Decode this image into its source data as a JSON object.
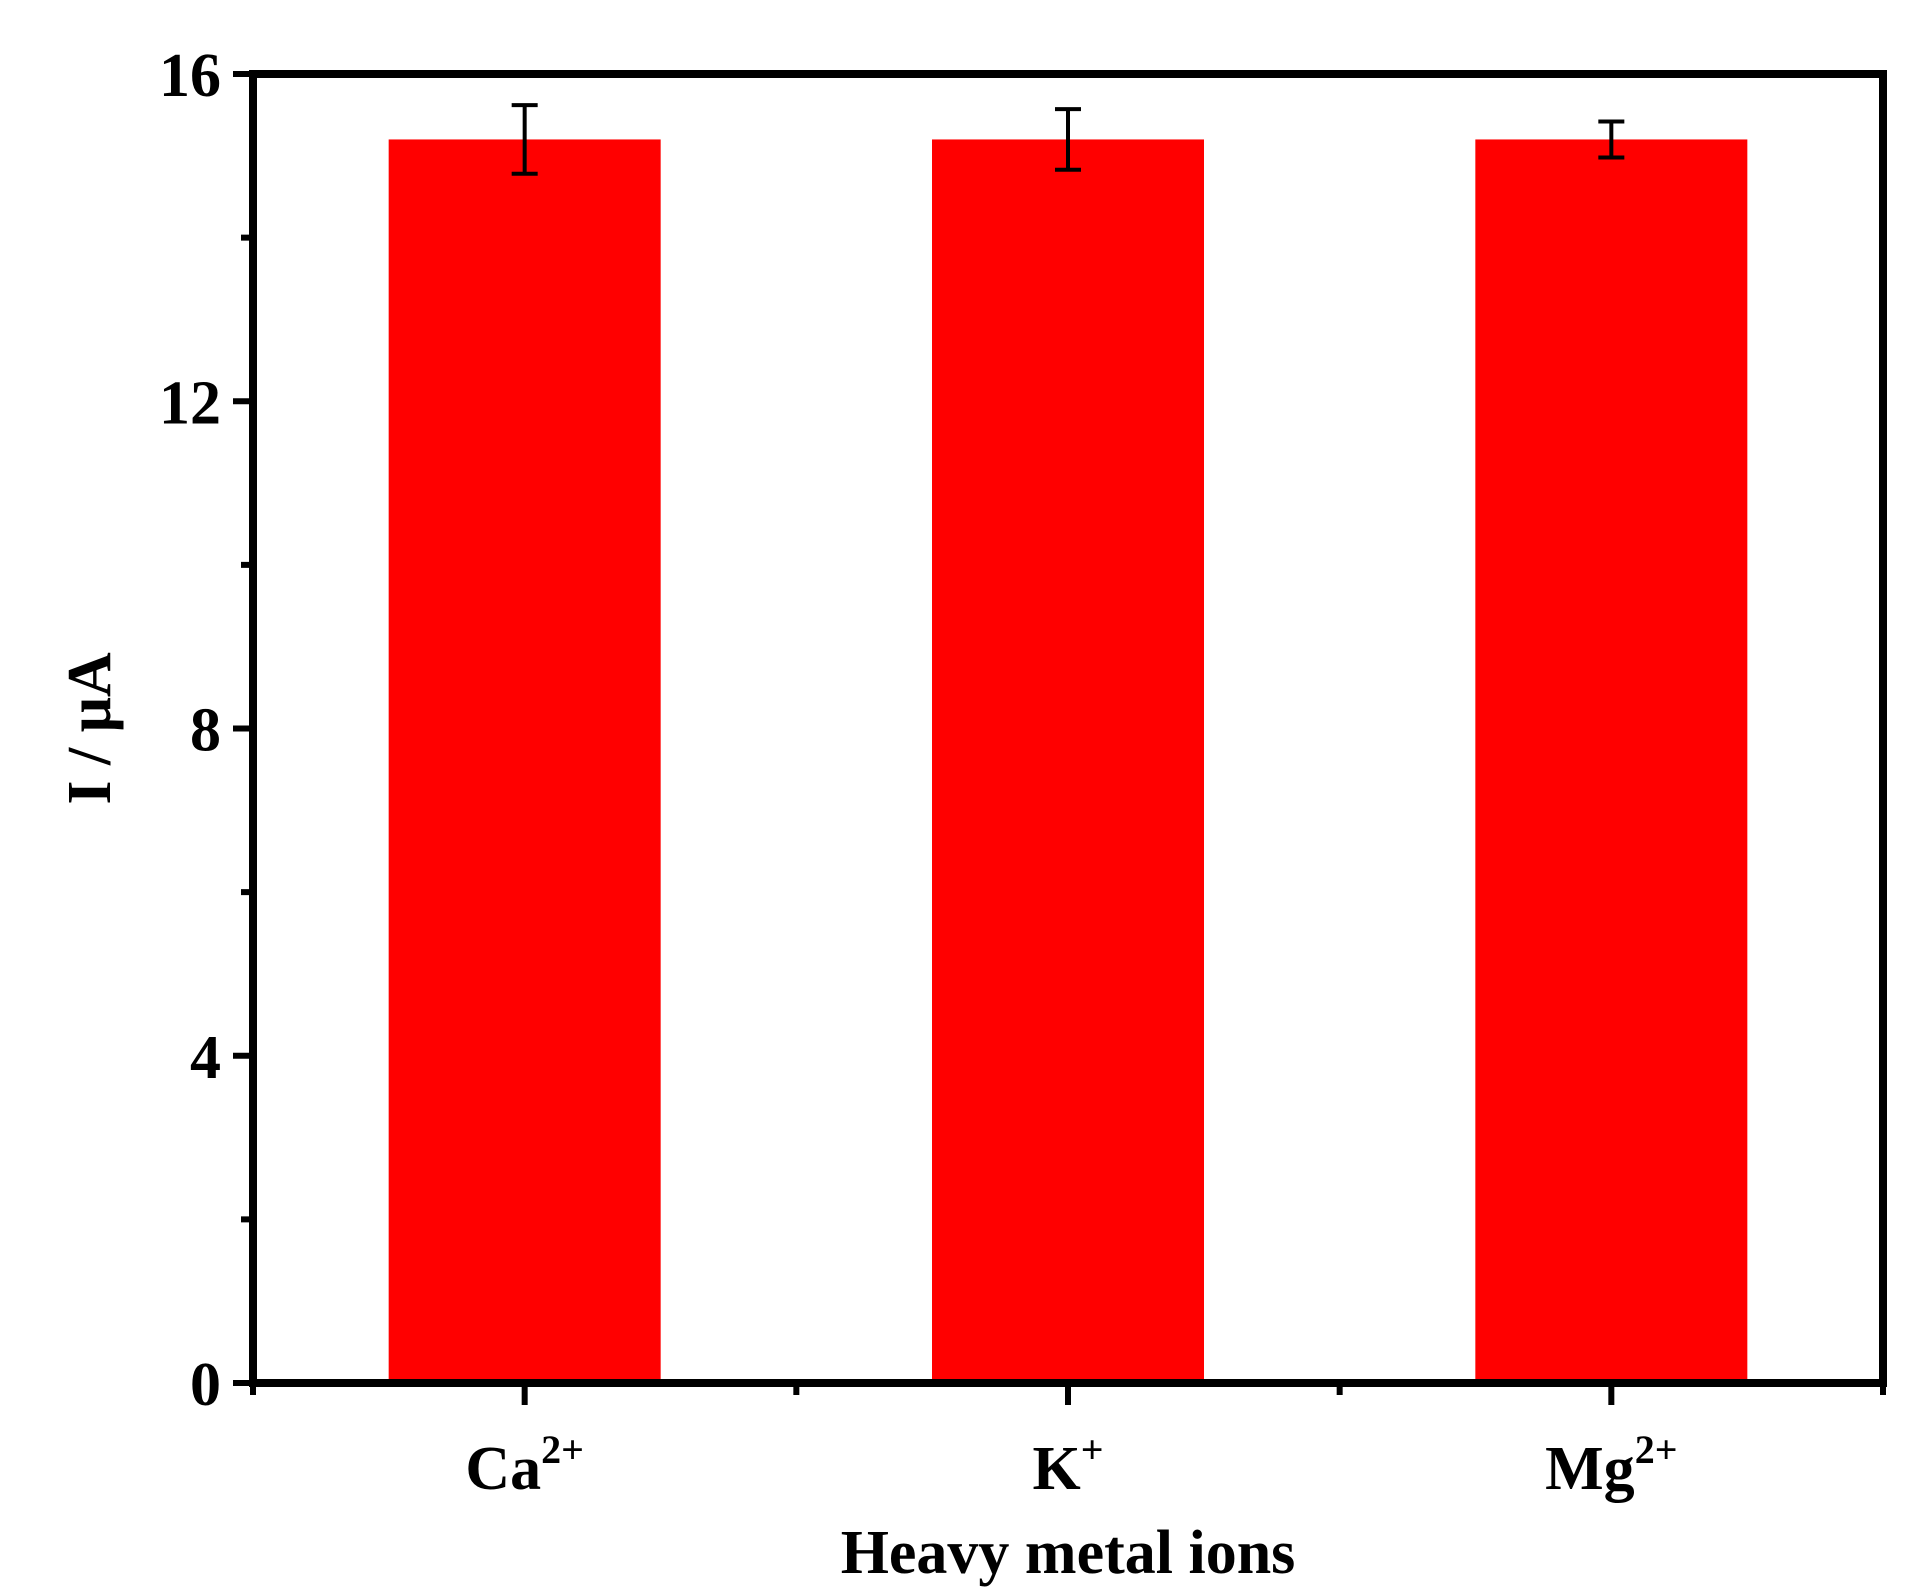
{
  "chart_data": {
    "type": "bar",
    "categories": [
      {
        "base": "Ca",
        "sup": "2+"
      },
      {
        "base": "K",
        "sup": "+"
      },
      {
        "base": "Mg",
        "sup": "2+"
      }
    ],
    "values": [
      15.2,
      15.2,
      15.2
    ],
    "errors": [
      0.42,
      0.37,
      0.22
    ],
    "xlabel": "Heavy metal ions",
    "ylabel": "I / μA",
    "ylim": [
      0,
      16
    ],
    "yticks": [
      0,
      4,
      8,
      12,
      16
    ],
    "y_minor_step": 2,
    "grid": false,
    "bar_color": "#ff0000",
    "axis_color": "#000000"
  }
}
